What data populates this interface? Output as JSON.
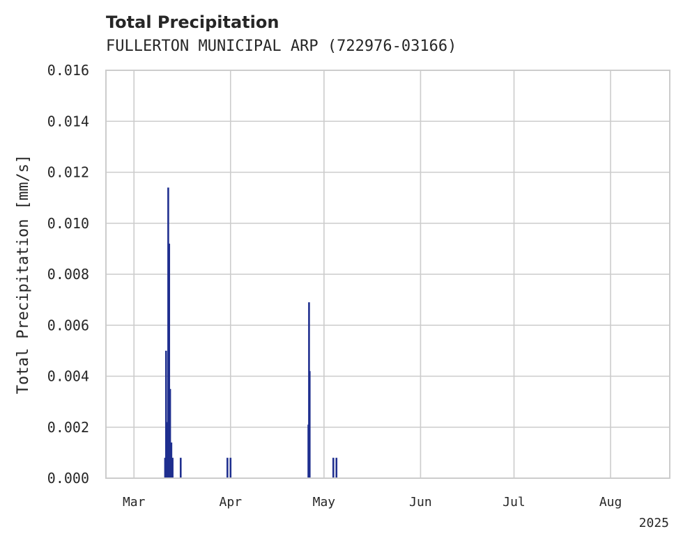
{
  "chart_data": {
    "type": "bar",
    "title": "Total Precipitation",
    "subtitle": "FULLERTON MUNICIPAL ARP (722976-03166)",
    "xlabel": "",
    "ylabel": "Total Precipitation [mm/s]",
    "ylim": [
      0,
      0.016
    ],
    "xlim": [
      "2025-02-20",
      "2025-08-20"
    ],
    "y_ticks": [
      "0.000",
      "0.002",
      "0.004",
      "0.006",
      "0.008",
      "0.010",
      "0.012",
      "0.014",
      "0.016"
    ],
    "x_ticks": [
      {
        "date": "2025-03-01",
        "label": "Mar"
      },
      {
        "date": "2025-04-01",
        "label": "Apr"
      },
      {
        "date": "2025-05-01",
        "label": "May"
      },
      {
        "date": "2025-06-01",
        "label": "Jun"
      },
      {
        "date": "2025-07-01",
        "label": "Jul"
      },
      {
        "date": "2025-08-01",
        "label": "Aug"
      }
    ],
    "year_label": "2025",
    "grid": true,
    "series_color": "#1f2f8f",
    "data": [
      {
        "date": "2025-03-11",
        "value": 0.0008
      },
      {
        "date": "2025-03-11.3",
        "value": 0.005
      },
      {
        "date": "2025-03-11.6",
        "value": 0.0022
      },
      {
        "date": "2025-03-12",
        "value": 0.0114
      },
      {
        "date": "2025-03-12.3",
        "value": 0.0092
      },
      {
        "date": "2025-03-12.6",
        "value": 0.0035
      },
      {
        "date": "2025-03-13",
        "value": 0.0014
      },
      {
        "date": "2025-03-13.4",
        "value": 0.0008
      },
      {
        "date": "2025-03-16",
        "value": 0.0008
      },
      {
        "date": "2025-03-31",
        "value": 0.0008
      },
      {
        "date": "2025-04-01",
        "value": 0.0008
      },
      {
        "date": "2025-04-26",
        "value": 0.0021
      },
      {
        "date": "2025-04-26.2",
        "value": 0.0069
      },
      {
        "date": "2025-04-26.4",
        "value": 0.0042
      },
      {
        "date": "2025-05-04",
        "value": 0.0008
      },
      {
        "date": "2025-05-05",
        "value": 0.0008
      }
    ]
  }
}
